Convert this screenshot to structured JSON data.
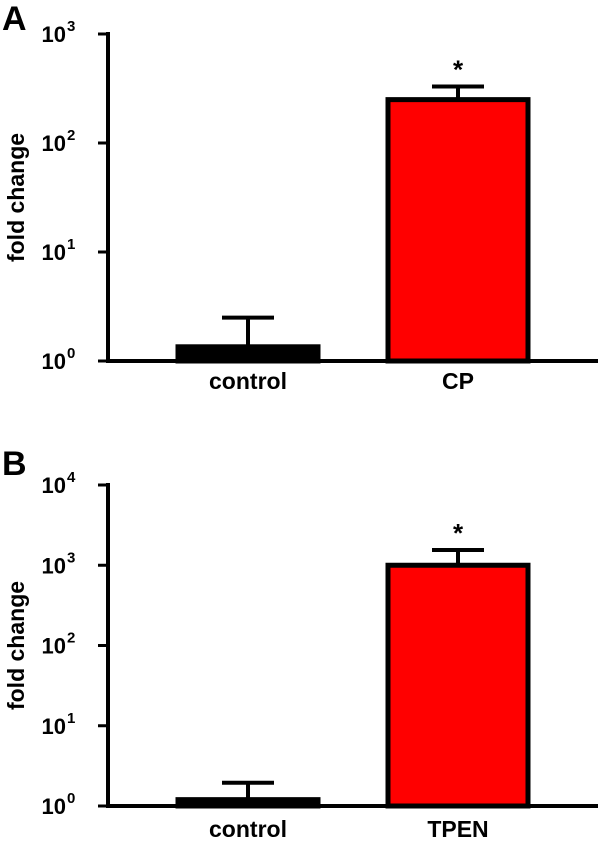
{
  "chart_data": [
    {
      "panel": "A",
      "type": "bar",
      "scale": "log",
      "ylabel": "fold change",
      "ylim": [
        1,
        1000
      ],
      "yticks": [
        {
          "base": "10",
          "exp": "0",
          "value": 1
        },
        {
          "base": "10",
          "exp": "1",
          "value": 10
        },
        {
          "base": "10",
          "exp": "2",
          "value": 100
        },
        {
          "base": "10",
          "exp": "3",
          "value": 1000
        }
      ],
      "categories": [
        "control",
        "CP"
      ],
      "values": [
        1.35,
        250
      ],
      "errors_upper": [
        2.5,
        330
      ],
      "colors": [
        "#000000",
        "#ff0000"
      ],
      "significance": [
        "",
        "*"
      ]
    },
    {
      "panel": "B",
      "type": "bar",
      "scale": "log",
      "ylabel": "fold change",
      "ylim": [
        1,
        10000
      ],
      "yticks": [
        {
          "base": "10",
          "exp": "0",
          "value": 1
        },
        {
          "base": "10",
          "exp": "1",
          "value": 10
        },
        {
          "base": "10",
          "exp": "2",
          "value": 100
        },
        {
          "base": "10",
          "exp": "3",
          "value": 1000
        },
        {
          "base": "10",
          "exp": "4",
          "value": 10000
        }
      ],
      "categories": [
        "control",
        "TPEN"
      ],
      "values": [
        1.2,
        1000
      ],
      "errors_upper": [
        1.95,
        1550
      ],
      "colors": [
        "#000000",
        "#ff0000"
      ],
      "significance": [
        "",
        "*"
      ]
    }
  ]
}
